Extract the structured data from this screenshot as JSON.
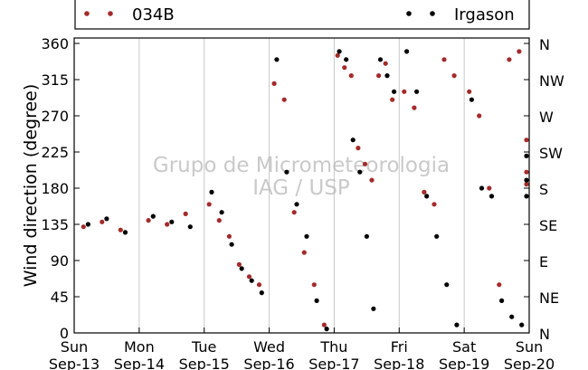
{
  "chart_data": {
    "type": "scatter",
    "ylabel": "Wind direction (degree)",
    "ylim": [
      0,
      360
    ],
    "yticks": [
      0,
      45,
      90,
      135,
      180,
      225,
      270,
      315,
      360
    ],
    "y2_ticks": [
      {
        "value": 0,
        "label": "N"
      },
      {
        "value": 45,
        "label": "NE"
      },
      {
        "value": 90,
        "label": "E"
      },
      {
        "value": 135,
        "label": "SE"
      },
      {
        "value": 180,
        "label": "S"
      },
      {
        "value": 225,
        "label": "SW"
      },
      {
        "value": 270,
        "label": "W"
      },
      {
        "value": 315,
        "label": "NW"
      },
      {
        "value": 360,
        "label": "N"
      }
    ],
    "xlim": [
      "2015-09-13",
      "2015-09-20"
    ],
    "xticks": [
      {
        "day": "Sun",
        "date": "Sep-13"
      },
      {
        "day": "Mon",
        "date": "Sep-14"
      },
      {
        "day": "Tue",
        "date": "Sep-15"
      },
      {
        "day": "Wed",
        "date": "Sep-16"
      },
      {
        "day": "Thu",
        "date": "Sep-17"
      },
      {
        "day": "Fri",
        "date": "Sep-18"
      },
      {
        "day": "Sat",
        "date": "Sep-19"
      },
      {
        "day": "Sun",
        "date": "Sep-20"
      }
    ],
    "grid": "vertical-day-lines",
    "legend_position": "top",
    "series": [
      {
        "name": "034B",
        "color": "#a52a2a",
        "marker": "dot",
        "points": [
          [
            "2015-09-13",
            132
          ],
          [
            "2015-09-13",
            138
          ],
          [
            "2015-09-13",
            128
          ],
          [
            "2015-09-14",
            140
          ],
          [
            "2015-09-14",
            135
          ],
          [
            "2015-09-14",
            148
          ],
          [
            "2015-09-15",
            160
          ],
          [
            "2015-09-15",
            140
          ],
          [
            "2015-09-15",
            120
          ],
          [
            "2015-09-15",
            85
          ],
          [
            "2015-09-15",
            70
          ],
          [
            "2015-09-15",
            60
          ],
          [
            "2015-09-16",
            310
          ],
          [
            "2015-09-16",
            290
          ],
          [
            "2015-09-16",
            150
          ],
          [
            "2015-09-16",
            100
          ],
          [
            "2015-09-16",
            60
          ],
          [
            "2015-09-16",
            10
          ],
          [
            "2015-09-17",
            345
          ],
          [
            "2015-09-17",
            330
          ],
          [
            "2015-09-17",
            320
          ],
          [
            "2015-09-17",
            230
          ],
          [
            "2015-09-17",
            210
          ],
          [
            "2015-09-17",
            190
          ],
          [
            "2015-09-17",
            320
          ],
          [
            "2015-09-17",
            335
          ],
          [
            "2015-09-17",
            290
          ],
          [
            "2015-09-18",
            300
          ],
          [
            "2015-09-18",
            280
          ],
          [
            "2015-09-18",
            175
          ],
          [
            "2015-09-18",
            160
          ],
          [
            "2015-09-18",
            340
          ],
          [
            "2015-09-18",
            320
          ],
          [
            "2015-09-19",
            300
          ],
          [
            "2015-09-19",
            270
          ],
          [
            "2015-09-19",
            180
          ],
          [
            "2015-09-19",
            60
          ],
          [
            "2015-09-19",
            340
          ],
          [
            "2015-09-19",
            350
          ],
          [
            "2015-09-20",
            240
          ],
          [
            "2015-09-20",
            200
          ],
          [
            "2015-09-20",
            185
          ]
        ]
      },
      {
        "name": "Irgason",
        "color": "#000000",
        "marker": "dot",
        "points": [
          [
            "2015-09-13",
            135
          ],
          [
            "2015-09-13",
            142
          ],
          [
            "2015-09-13",
            125
          ],
          [
            "2015-09-14",
            145
          ],
          [
            "2015-09-14",
            138
          ],
          [
            "2015-09-14",
            132
          ],
          [
            "2015-09-15",
            175
          ],
          [
            "2015-09-15",
            150
          ],
          [
            "2015-09-15",
            110
          ],
          [
            "2015-09-15",
            80
          ],
          [
            "2015-09-15",
            65
          ],
          [
            "2015-09-15",
            50
          ],
          [
            "2015-09-16",
            340
          ],
          [
            "2015-09-16",
            200
          ],
          [
            "2015-09-16",
            160
          ],
          [
            "2015-09-16",
            120
          ],
          [
            "2015-09-16",
            40
          ],
          [
            "2015-09-16",
            5
          ],
          [
            "2015-09-17",
            350
          ],
          [
            "2015-09-17",
            340
          ],
          [
            "2015-09-17",
            240
          ],
          [
            "2015-09-17",
            200
          ],
          [
            "2015-09-17",
            120
          ],
          [
            "2015-09-17",
            30
          ],
          [
            "2015-09-17",
            340
          ],
          [
            "2015-09-17",
            320
          ],
          [
            "2015-09-17",
            300
          ],
          [
            "2015-09-18",
            350
          ],
          [
            "2015-09-18",
            300
          ],
          [
            "2015-09-18",
            170
          ],
          [
            "2015-09-18",
            120
          ],
          [
            "2015-09-18",
            60
          ],
          [
            "2015-09-18",
            10
          ],
          [
            "2015-09-19",
            290
          ],
          [
            "2015-09-19",
            180
          ],
          [
            "2015-09-19",
            170
          ],
          [
            "2015-09-19",
            40
          ],
          [
            "2015-09-19",
            20
          ],
          [
            "2015-09-19",
            10
          ],
          [
            "2015-09-20",
            220
          ],
          [
            "2015-09-20",
            190
          ],
          [
            "2015-09-20",
            170
          ]
        ]
      }
    ]
  },
  "watermark": {
    "line1": "Grupo de Micrometeorologia",
    "line2": "IAG / USP"
  }
}
